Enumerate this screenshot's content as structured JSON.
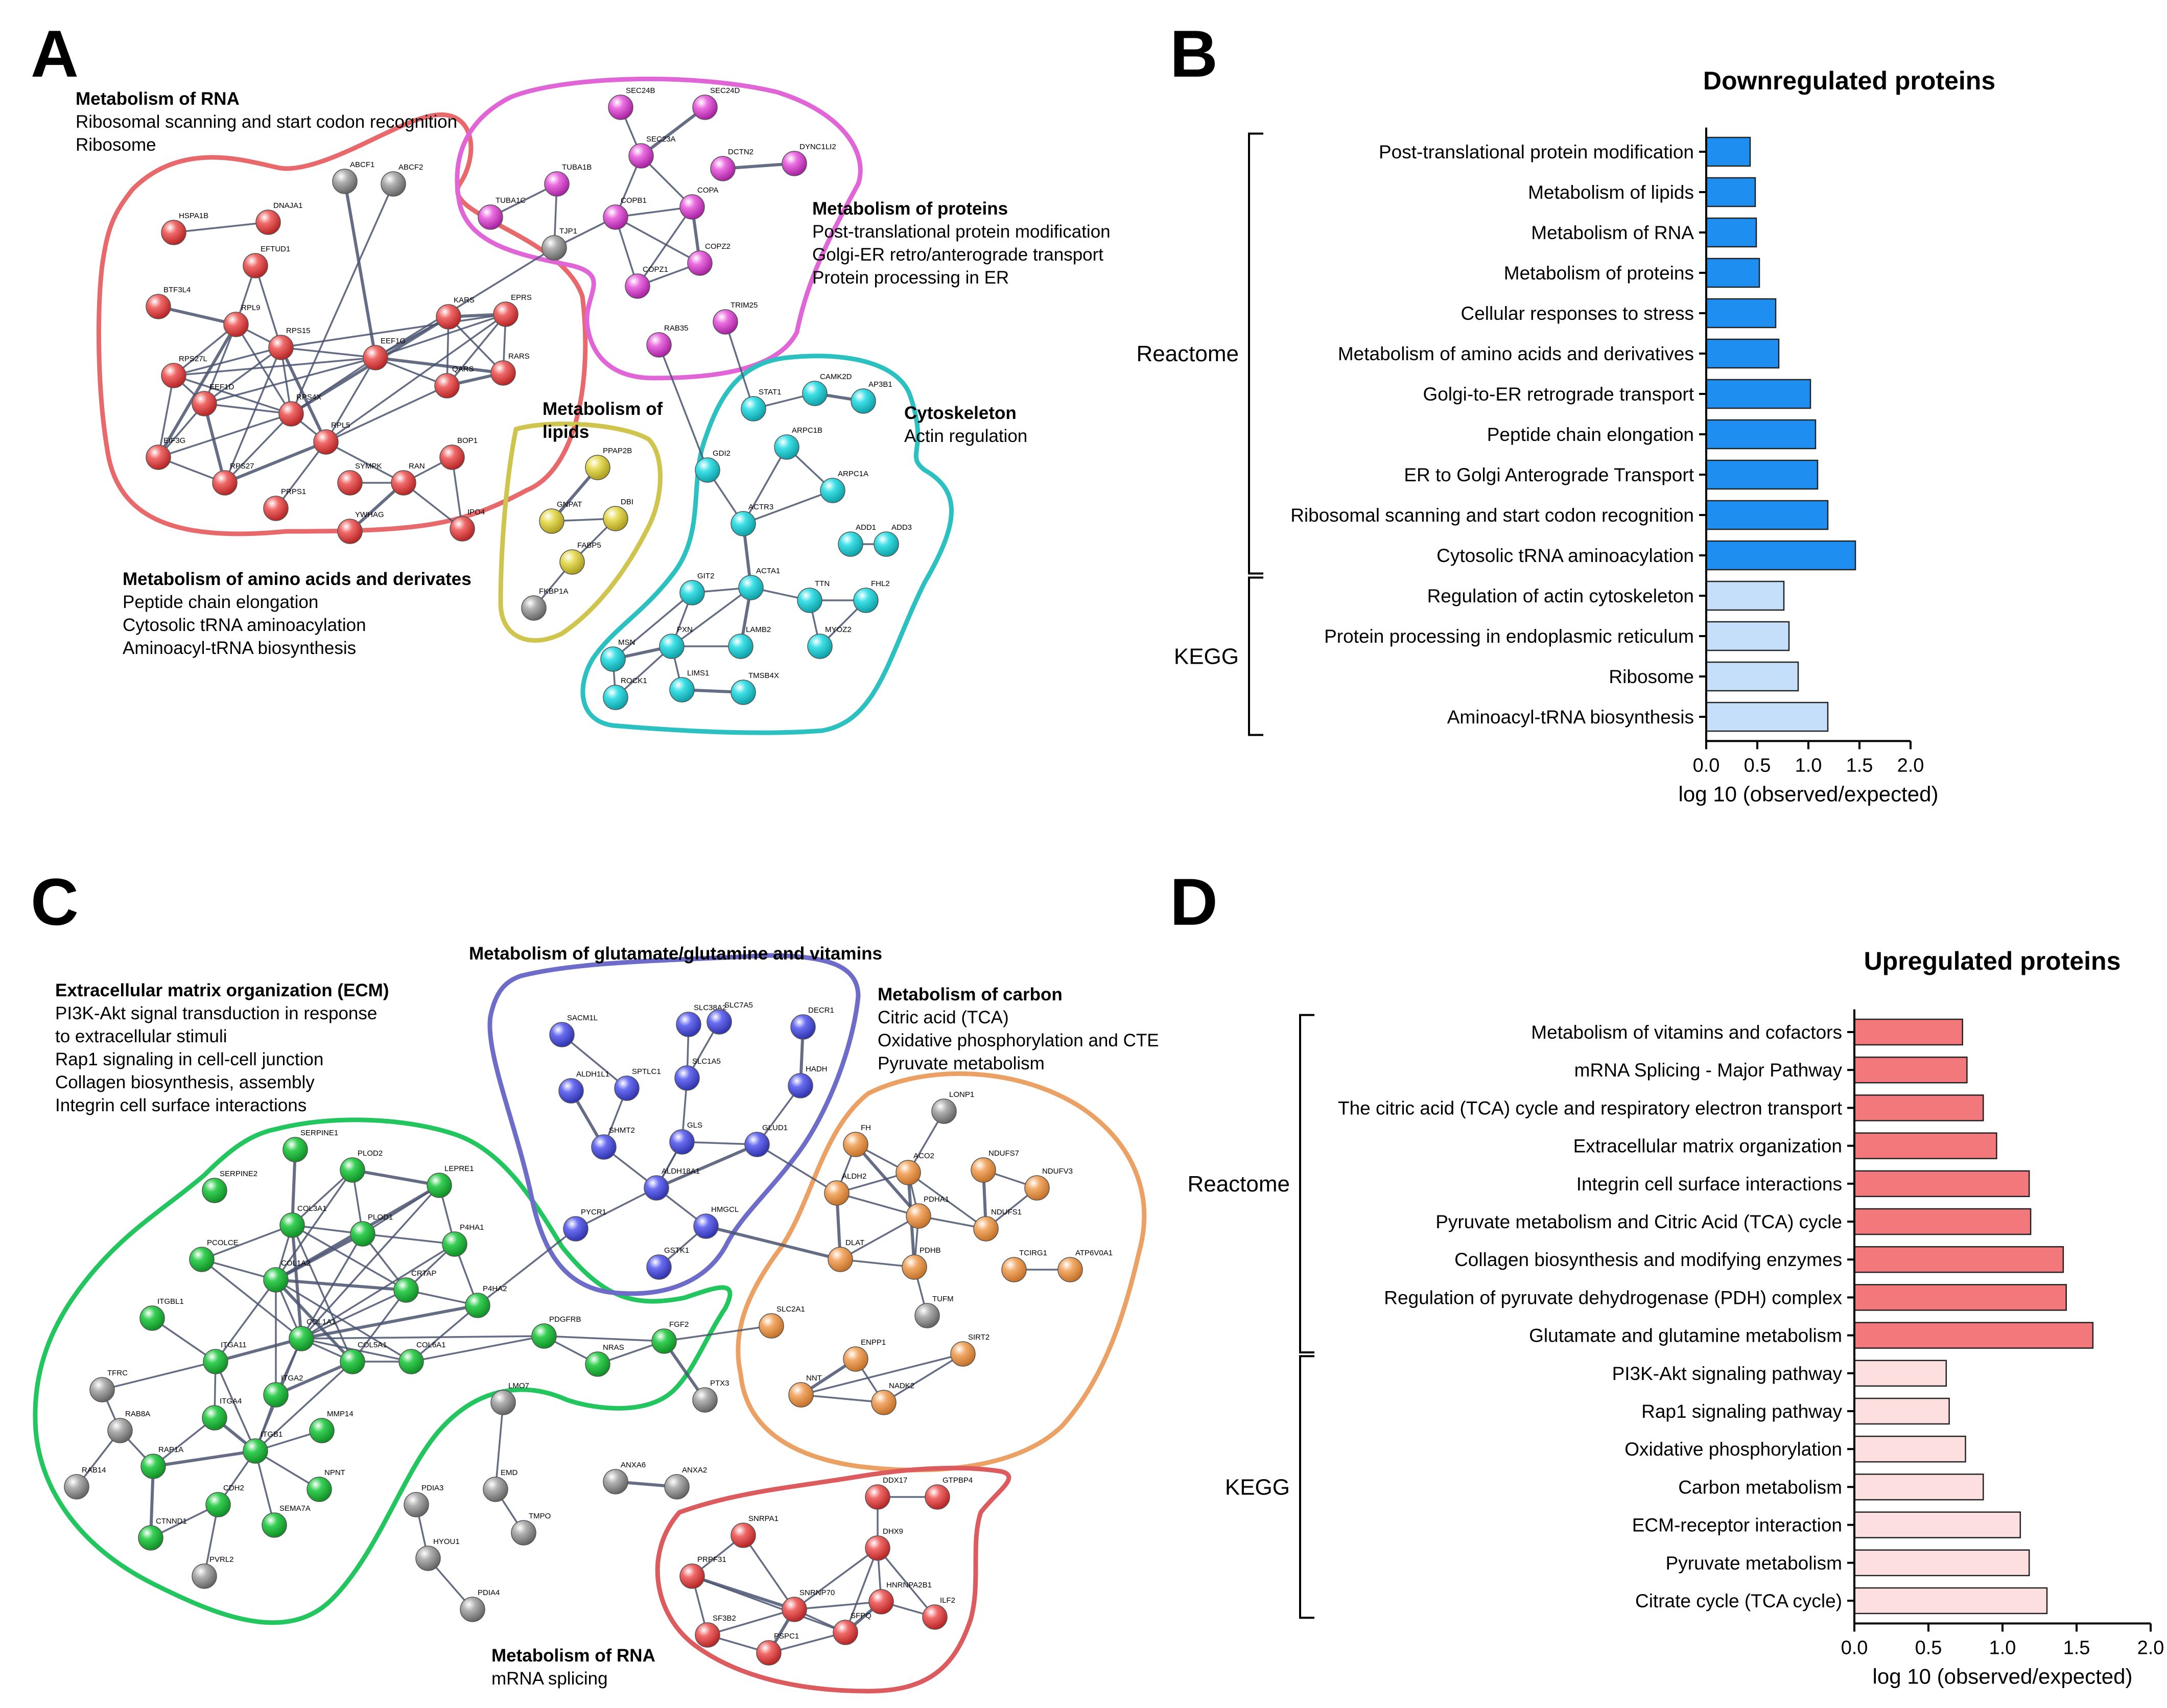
{
  "panels": {
    "a": "A",
    "b": "B",
    "c": "C",
    "d": "D"
  },
  "network_a": {
    "clusters": [
      {
        "title": "Metabolism of RNA",
        "lines": [
          "Ribosomal scanning and start codon recognition",
          "Ribosome"
        ]
      },
      {
        "title": "Metabolism of proteins",
        "lines": [
          "Post-translational protein modification",
          "Golgi-ER retro/anterograde transport",
          "Protein processing in ER"
        ]
      },
      {
        "title": "Cytoskeleton",
        "lines": [
          "Actin regulation"
        ]
      },
      {
        "title": "Metabolism of lipids",
        "lines": []
      },
      {
        "title": "Metabolism of amino acids and derivates",
        "lines": [
          "Peptide chain elongation",
          "Cytosolic tRNA aminoacylation",
          "Aminoacyl-tRNA biosynthesis"
        ]
      }
    ],
    "nodes": [
      "ABCF1",
      "ABCF2",
      "HSPA1B",
      "DNAJA1",
      "EFTUD1",
      "BTF3L4",
      "RPL9",
      "RPS15",
      "EEF1G",
      "KARS",
      "EPRS",
      "RPS27L",
      "QARS",
      "RARS",
      "EEF1D",
      "RPS4X",
      "RPL5",
      "EIF3G",
      "RPS27",
      "SYMPK",
      "RAN",
      "BOP1",
      "PRPS1",
      "YWHAG",
      "IPO4",
      "SEC24B",
      "SEC24D",
      "SEC23A",
      "TUBA1B",
      "DCTN2",
      "DYNC1LI2",
      "TUBA1C",
      "COPB1",
      "COPA",
      "TJP1",
      "COPZ1",
      "COPZ2",
      "TRIM25",
      "RAB35",
      "PPAP2B",
      "GNPAT",
      "DBI",
      "FABP5",
      "FKBP1A",
      "STAT1",
      "CAMK2D",
      "AP3B1",
      "ARPC1B",
      "GDI2",
      "ARPC1A",
      "ACTR3",
      "ADD1",
      "ADD3",
      "GIT2",
      "ACTA1",
      "TTN",
      "FHL2",
      "MSN",
      "PXN",
      "LAMB2",
      "MYOZ2",
      "ROCK1",
      "LIMS1",
      "TMSB4X"
    ]
  },
  "network_c": {
    "clusters": [
      {
        "title": "Extracellular matrix organization (ECM)",
        "lines": [
          "PI3K-Akt signal transduction in response",
          "to extracellular stimuli",
          "Rap1 signaling in cell-cell junction",
          "Collagen biosynthesis, assembly",
          "Integrin cell surface interactions"
        ]
      },
      {
        "title": "Metabolism of glutamate/glutamine and vitamins",
        "lines": []
      },
      {
        "title": "Metabolism of carbon",
        "lines": [
          "Citric acid (TCA)",
          "Oxidative phosphorylation and CTE",
          "Pyruvate metabolism"
        ]
      },
      {
        "title": "Metabolism of RNA",
        "lines": [
          "mRNA splicing"
        ]
      }
    ],
    "nodes": [
      "SERPINE1",
      "PLOD2",
      "SERPINE2",
      "LEPRE1",
      "PCOLCE",
      "COL3A1",
      "PLOD1",
      "P4HA1",
      "CRTAP",
      "COL1A2",
      "ITGBL1",
      "P4HA2",
      "COL1A1",
      "PDGFRB",
      "ITGA11",
      "COL5A1",
      "COL6A1",
      "NRAS",
      "FGF2",
      "TFRC",
      "ITGA2",
      "ITGA4",
      "MMP14",
      "RAB8A",
      "ITGB1",
      "RAB14",
      "RAP1A",
      "NPNT",
      "CDH2",
      "SEMA7A",
      "CTNND1",
      "PVRL2",
      "PTX3",
      "SLC38A2",
      "SLC7A5",
      "DECR1",
      "SACM1L",
      "ALDH1L1",
      "SPTLC1",
      "SLC1A5",
      "HADH",
      "GLS",
      "SHMT2",
      "GLUD1",
      "ALDH18A1",
      "PYCR1",
      "HMGCL",
      "GSTK1",
      "LONP1",
      "FH",
      "ACO2",
      "NDUFS7",
      "NDUFV3",
      "ALDH2",
      "PDHA1",
      "NDUFS1",
      "DLAT",
      "PDHB",
      "TCIRG1",
      "ATP6V0A1",
      "TUFM",
      "SLC2A1",
      "ENPP1",
      "SIRT2",
      "NNT",
      "NADK2",
      "LMO7",
      "ANXA6",
      "ANXA2",
      "EMD",
      "PDIA3",
      "TMPO",
      "HYOU1",
      "PDIA4",
      "DDX17",
      "GTPBP4",
      "SNRPA1",
      "DHX9",
      "PRPF31",
      "SNRNP70",
      "HNRNPA2B1",
      "ILF2",
      "SF3B2",
      "SFPQ",
      "PSPC1"
    ]
  },
  "chart_data": [
    {
      "type": "bar",
      "orientation": "horizontal",
      "title": "Downregulated proteins",
      "xlabel": "log 10 (observed/expected)",
      "ylabel": "",
      "xlim": [
        0,
        2.0
      ],
      "xticks": [
        "0.0",
        "0.5",
        "1.0",
        "1.5",
        "2.0"
      ],
      "groups": [
        {
          "name": "Reactome",
          "color": "#1E8FF0",
          "categories": [
            "Post-translational protein modification",
            "Metabolism of lipids",
            "Metabolism of RNA",
            "Metabolism of proteins",
            "Cellular responses to stress",
            "Metabolism of amino acids and derivatives",
            "Golgi-to-ER retrograde transport",
            "Peptide chain elongation",
            "ER to Golgi Anterograde Transport",
            "Ribosomal scanning and start codon recognition",
            "Cytosolic tRNA aminoacylation"
          ],
          "values": [
            0.43,
            0.48,
            0.49,
            0.52,
            0.68,
            0.71,
            1.02,
            1.07,
            1.09,
            1.19,
            1.46
          ]
        },
        {
          "name": "KEGG",
          "color": "#C5DFFA",
          "categories": [
            "Regulation of actin cytoskeleton",
            "Protein processing in endoplasmic reticulum",
            "Ribosome",
            "Aminoacyl-tRNA biosynthesis"
          ],
          "values": [
            0.76,
            0.81,
            0.9,
            1.19
          ]
        }
      ]
    },
    {
      "type": "bar",
      "orientation": "horizontal",
      "title": "Upregulated proteins",
      "xlabel": "log 10 (observed/expected)",
      "ylabel": "",
      "xlim": [
        0,
        2.0
      ],
      "xticks": [
        "0.0",
        "0.5",
        "1.0",
        "1.5",
        "2.0"
      ],
      "groups": [
        {
          "name": "Reactome",
          "color": "#F2787C",
          "categories": [
            "Metabolism of vitamins and cofactors",
            "mRNA Splicing - Major Pathway",
            "The citric acid (TCA) cycle and respiratory electron transport",
            "Extracellular matrix organization",
            "Integrin cell surface interactions",
            "Pyruvate metabolism and Citric Acid (TCA) cycle",
            "Collagen biosynthesis and modifying enzymes",
            "Regulation of pyruvate dehydrogenase (PDH) complex",
            "Glutamate and glutamine metabolism"
          ],
          "values": [
            0.73,
            0.76,
            0.87,
            0.96,
            1.18,
            1.19,
            1.41,
            1.43,
            1.61
          ]
        },
        {
          "name": "KEGG",
          "color": "#FDDFE0",
          "categories": [
            "PI3K-Akt signaling pathway",
            "Rap1 signaling pathway",
            "Oxidative phosphorylation",
            "Carbon metabolism",
            "ECM-receptor interaction",
            "Pyruvate metabolism",
            "Citrate cycle (TCA cycle)"
          ],
          "values": [
            0.62,
            0.64,
            0.75,
            0.87,
            1.12,
            1.18,
            1.3
          ]
        }
      ]
    }
  ]
}
